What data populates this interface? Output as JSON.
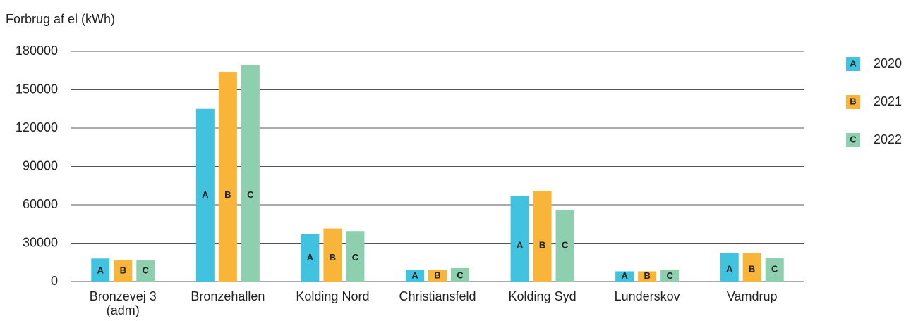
{
  "chart_data": {
    "type": "bar",
    "y_axis_label": "Forbrug af el (kWh)",
    "categories": [
      "Bronzevej 3\n(adm)",
      "Bronzehallen",
      "Kolding Nord",
      "Christiansfeld",
      "Kolding Syd",
      "Lunderskov",
      "Vamdrup"
    ],
    "series": [
      {
        "name": "2020",
        "letter": "A",
        "color": "#41c3e0",
        "values": [
          18000,
          135000,
          37000,
          9000,
          67000,
          8000,
          22500
        ]
      },
      {
        "name": "2021",
        "letter": "B",
        "color": "#f9b43a",
        "values": [
          16500,
          164000,
          41500,
          9000,
          71000,
          8000,
          22500
        ]
      },
      {
        "name": "2022",
        "letter": "C",
        "color": "#8ecfb0",
        "values": [
          16500,
          169000,
          39500,
          10500,
          56000,
          9000,
          18500
        ]
      }
    ],
    "ylim": [
      0,
      180000
    ],
    "yticks": [
      0,
      30000,
      60000,
      90000,
      120000,
      150000,
      180000
    ],
    "grid": true,
    "legend": "right"
  }
}
